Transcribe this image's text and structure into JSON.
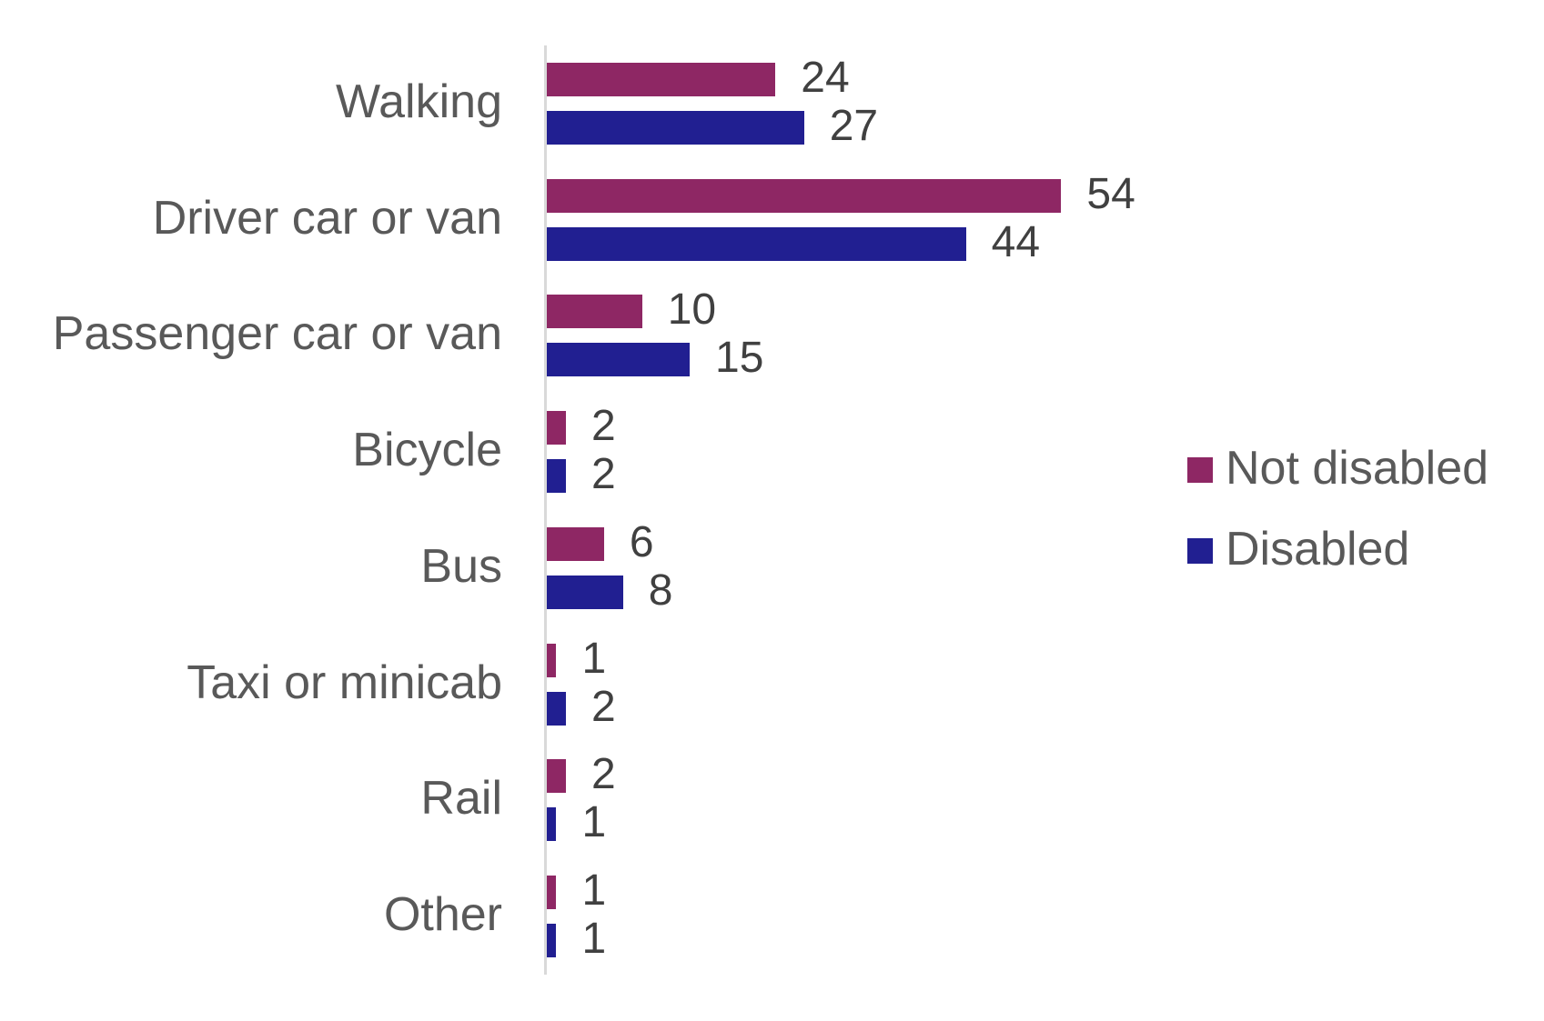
{
  "chart_data": {
    "type": "bar",
    "orientation": "horizontal",
    "title": "",
    "xlabel": "",
    "ylabel": "",
    "categories": [
      "Walking",
      "Driver car or van",
      "Passenger car or van",
      "Bicycle",
      "Bus",
      "Taxi or minicab",
      "Rail",
      "Other"
    ],
    "series": [
      {
        "name": "Not disabled",
        "color": "#8E2764",
        "values": [
          24,
          54,
          10,
          2,
          6,
          1,
          2,
          1
        ]
      },
      {
        "name": "Disabled",
        "color": "#211F91",
        "values": [
          27,
          44,
          15,
          2,
          8,
          2,
          1,
          1
        ]
      }
    ],
    "data_labels": true,
    "grid": false,
    "x_axis_visible": false,
    "legend_position": "right",
    "xlim": [
      0,
      60
    ]
  },
  "legend": {
    "items": [
      {
        "label": "Not disabled",
        "color": "#8E2764"
      },
      {
        "label": "Disabled",
        "color": "#211F91"
      }
    ]
  }
}
